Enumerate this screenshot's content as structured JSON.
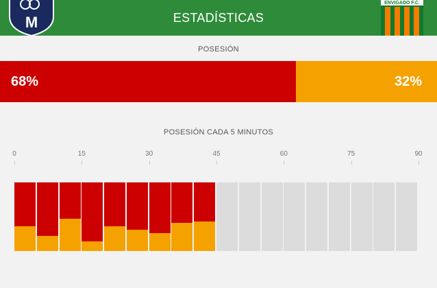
{
  "header": {
    "title": "ESTADÍSTICAS",
    "away_crest_text": "ENVIGADO F.C.",
    "home_crest_text": "M"
  },
  "possession": {
    "label": "POSESIÓN",
    "home_pct": 68,
    "away_pct": 32,
    "home_text": "68%",
    "away_text": "32%"
  },
  "timeline": {
    "label": "POSESIÓN CADA 5 MINUTOS",
    "ticks": [
      "0",
      "15",
      "30",
      "45",
      "60",
      "75",
      "90"
    ],
    "home_share_per_interval": [
      0.64,
      0.78,
      0.53,
      0.86,
      0.64,
      0.69,
      0.74,
      0.59,
      0.57,
      null,
      null,
      null,
      null,
      null,
      null,
      null,
      null,
      null
    ]
  },
  "colors": {
    "home": "#cc0000",
    "away": "#f5a100",
    "header": "#2e8b3a",
    "empty": "#dcdcdc"
  }
}
